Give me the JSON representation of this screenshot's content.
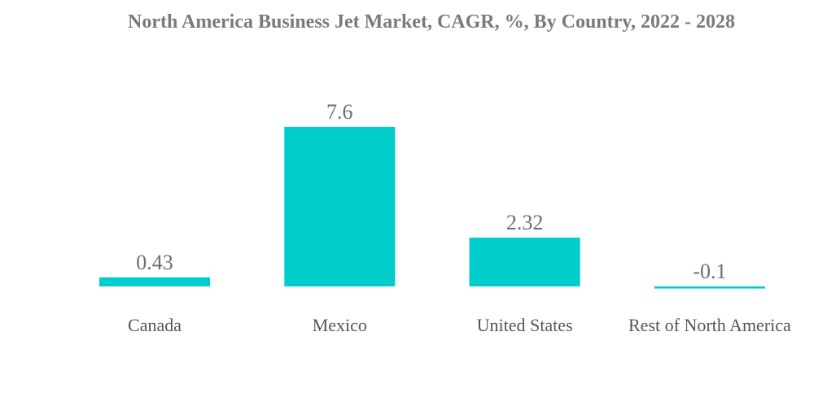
{
  "chart_data": {
    "type": "bar",
    "title": "North America Business Jet Market, CAGR, %, By Country, 2022 - 2028",
    "categories": [
      "Canada",
      "Mexico",
      "United States",
      "Rest of North America"
    ],
    "values": [
      0.43,
      7.6,
      2.32,
      -0.1
    ],
    "value_labels": [
      "0.43",
      "7.6",
      "2.32",
      "-0.1"
    ],
    "xlabel": "",
    "ylabel": "",
    "ylim": [
      -0.1,
      7.6
    ],
    "grid": false,
    "colors": {
      "bar": "#00cccc"
    }
  }
}
